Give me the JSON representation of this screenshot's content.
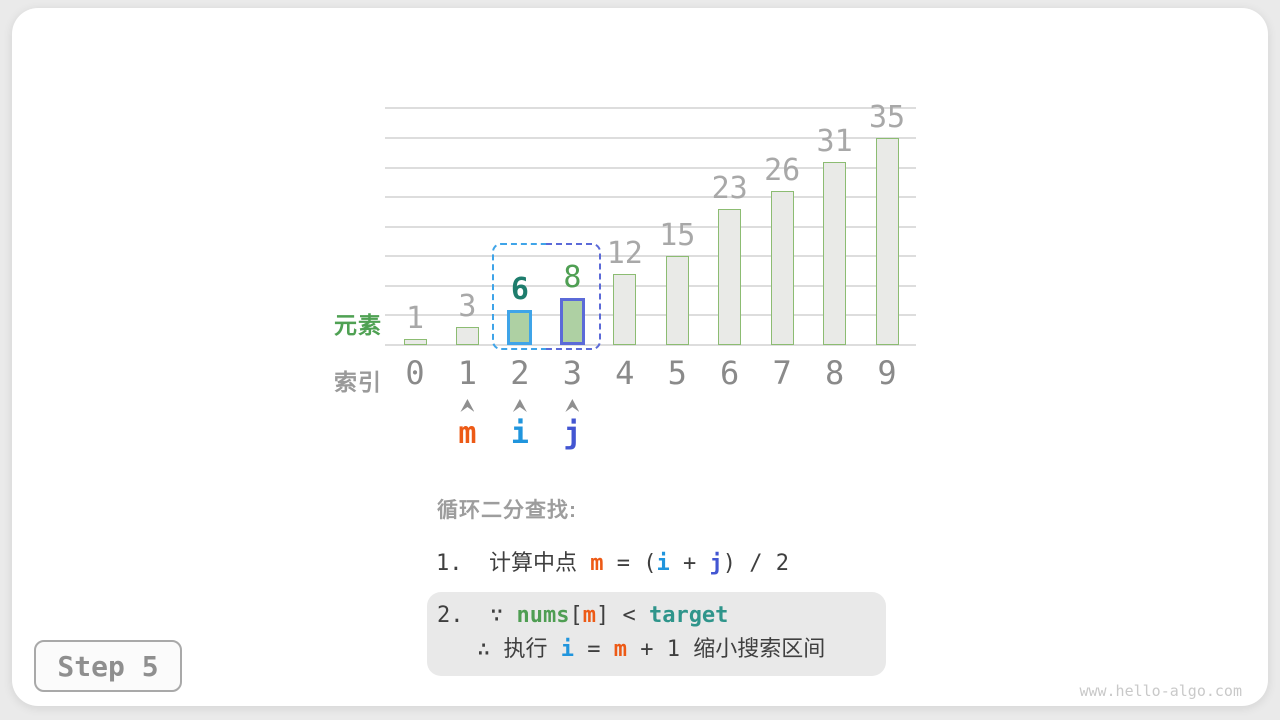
{
  "page": {
    "step_label": "Step 5",
    "site_url": "www.hello-algo.com"
  },
  "chart_data": {
    "type": "bar",
    "title": "",
    "element_axis_label": "元素",
    "index_axis_label": "索引",
    "categories": [
      0,
      1,
      2,
      3,
      4,
      5,
      6,
      7,
      8,
      9
    ],
    "values": [
      1,
      3,
      6,
      8,
      12,
      15,
      23,
      26,
      31,
      35
    ],
    "ylim": [
      0,
      40
    ],
    "gridline_step": 5,
    "grid": "on",
    "bar_fill": "#e9eae7",
    "bar_border": "#8cbc72",
    "value_label_color": "#a8a8a8",
    "index_label_color": "#8a8a8a",
    "highlights": {
      "2": {
        "fill": "#aed0a3",
        "border": "#3fa4e8",
        "label_color": "#1e7d6d",
        "label_bold": true
      },
      "3": {
        "fill": "#aed0a3",
        "border": "#5b6ad8",
        "label_color": "#4f9f53",
        "label_bold": false
      }
    },
    "search_window": {
      "from_index": 2,
      "to_index": 3,
      "left_color": "#3fa4e8",
      "right_color": "#5b6ad8"
    },
    "pointers": [
      {
        "label": "m",
        "index": 1,
        "color": "#ed5a16"
      },
      {
        "label": "i",
        "index": 2,
        "color": "#2095dd"
      },
      {
        "label": "j",
        "index": 3,
        "color": "#4356d2"
      }
    ]
  },
  "annotation": {
    "title": "循环二分查找:",
    "line1": [
      {
        "t": "1.  计算中点 "
      },
      {
        "t": "m",
        "c": "m"
      },
      {
        "t": " = ("
      },
      {
        "t": "i",
        "c": "i"
      },
      {
        "t": " + "
      },
      {
        "t": "j",
        "c": "j"
      },
      {
        "t": ") / 2"
      }
    ],
    "box_line1": [
      {
        "t": "2.  ∵ "
      },
      {
        "t": "nums",
        "c": "nums"
      },
      {
        "t": "["
      },
      {
        "t": "m",
        "c": "m"
      },
      {
        "t": "] < "
      },
      {
        "t": "target",
        "c": "target"
      }
    ],
    "box_line2": [
      {
        "t": "∴ 执行 "
      },
      {
        "t": "i",
        "c": "i"
      },
      {
        "t": " = "
      },
      {
        "t": "m",
        "c": "m"
      },
      {
        "t": " + 1 缩小搜索区间"
      }
    ]
  }
}
